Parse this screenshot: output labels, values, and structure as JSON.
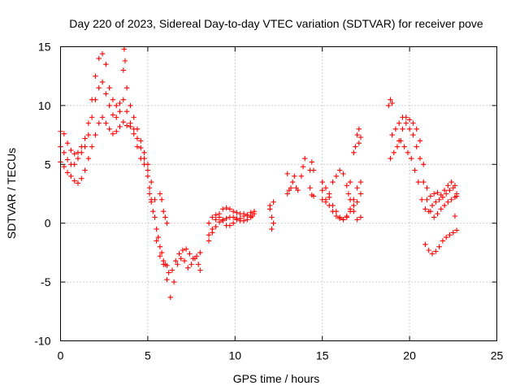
{
  "chart_data": {
    "type": "scatter",
    "title": "Day 220 of 2023, Sidereal Day-to-day VTEC variation (SDTVAR) for receiver pove",
    "xlabel": "GPS time / hours",
    "ylabel": "SDTVAR / TECUs",
    "xlim": [
      0,
      25
    ],
    "ylim": [
      -10,
      15
    ],
    "xticks": [
      "0",
      "5",
      "10",
      "15",
      "20",
      "25"
    ],
    "yticks": [
      "-10",
      "-5",
      "0",
      "5",
      "10",
      "15"
    ],
    "grid": true,
    "marker": "+",
    "series": [
      {
        "name": "SDTVAR",
        "color": "#ff0000",
        "points": [
          [
            0.0,
            7.8
          ],
          [
            0.2,
            7.6
          ],
          [
            0.4,
            6.8
          ],
          [
            0.6,
            6.2
          ],
          [
            0.8,
            5.9
          ],
          [
            1.0,
            6.0
          ],
          [
            1.2,
            6.5
          ],
          [
            1.4,
            7.2
          ],
          [
            1.6,
            8.5
          ],
          [
            1.8,
            10.5
          ],
          [
            2.0,
            12.5
          ],
          [
            2.2,
            14.0
          ],
          [
            2.4,
            14.4
          ],
          [
            2.6,
            13.5
          ],
          [
            2.8,
            11.5
          ],
          [
            3.0,
            10.5
          ],
          [
            3.2,
            10.0
          ],
          [
            3.4,
            10.2
          ],
          [
            3.6,
            13.0
          ],
          [
            3.65,
            14.8
          ],
          [
            3.7,
            13.8
          ],
          [
            3.8,
            11.5
          ],
          [
            4.0,
            10.0
          ],
          [
            4.2,
            9.0
          ],
          [
            4.4,
            8.0
          ],
          [
            4.6,
            7.0
          ],
          [
            4.8,
            6.0
          ],
          [
            5.0,
            4.5
          ],
          [
            5.1,
            3.0
          ],
          [
            5.2,
            1.8
          ],
          [
            0.0,
            6.5
          ],
          [
            0.2,
            6.0
          ],
          [
            0.4,
            5.4
          ],
          [
            0.6,
            5.0
          ],
          [
            0.8,
            5.0
          ],
          [
            1.0,
            5.5
          ],
          [
            1.2,
            6.0
          ],
          [
            1.4,
            6.5
          ],
          [
            1.6,
            7.5
          ],
          [
            1.8,
            9.0
          ],
          [
            2.0,
            10.5
          ],
          [
            2.2,
            11.5
          ],
          [
            2.4,
            12.0
          ],
          [
            2.6,
            11.0
          ],
          [
            2.8,
            10.0
          ],
          [
            3.0,
            9.2
          ],
          [
            3.2,
            9.0
          ],
          [
            3.4,
            9.5
          ],
          [
            3.6,
            10.5
          ],
          [
            3.8,
            9.5
          ],
          [
            4.0,
            8.5
          ],
          [
            4.2,
            8.0
          ],
          [
            4.4,
            7.2
          ],
          [
            4.6,
            6.4
          ],
          [
            4.8,
            5.5
          ],
          [
            5.0,
            5.0
          ],
          [
            5.2,
            3.5
          ],
          [
            5.4,
            2.0
          ],
          [
            0.0,
            5.2
          ],
          [
            0.2,
            4.8
          ],
          [
            0.4,
            4.3
          ],
          [
            0.6,
            4.0
          ],
          [
            0.8,
            3.6
          ],
          [
            1.0,
            3.4
          ],
          [
            1.2,
            3.8
          ],
          [
            1.4,
            4.5
          ],
          [
            1.6,
            5.5
          ],
          [
            1.8,
            6.5
          ],
          [
            2.0,
            7.5
          ],
          [
            2.2,
            8.5
          ],
          [
            2.4,
            9.0
          ],
          [
            2.6,
            8.5
          ],
          [
            2.8,
            8.0
          ],
          [
            3.0,
            7.6
          ],
          [
            3.2,
            7.8
          ],
          [
            3.4,
            8.2
          ],
          [
            3.6,
            8.6
          ],
          [
            3.8,
            8.3
          ],
          [
            4.0,
            8.2
          ],
          [
            4.2,
            7.6
          ],
          [
            4.4,
            6.5
          ],
          [
            4.6,
            5.5
          ],
          [
            4.8,
            5.0
          ],
          [
            5.0,
            4.0
          ],
          [
            5.1,
            2.5
          ],
          [
            5.3,
            1.0
          ],
          [
            5.5,
            -0.5
          ],
          [
            5.7,
            -2.0
          ],
          [
            5.9,
            -3.5
          ],
          [
            6.1,
            -4.8
          ],
          [
            6.3,
            -6.3
          ],
          [
            6.5,
            -5.0
          ],
          [
            6.7,
            -3.5
          ],
          [
            6.9,
            -3.0
          ],
          [
            7.1,
            -3.2
          ],
          [
            7.3,
            -3.8
          ],
          [
            7.5,
            -3.5
          ],
          [
            7.7,
            -3.0
          ],
          [
            7.9,
            -3.5
          ],
          [
            8.0,
            -4.0
          ],
          [
            5.2,
            2.0
          ],
          [
            5.4,
            0.5
          ],
          [
            5.6,
            -1.2
          ],
          [
            5.8,
            -2.5
          ],
          [
            6.0,
            -3.5
          ],
          [
            6.2,
            -4.2
          ],
          [
            6.4,
            -4.0
          ],
          [
            6.6,
            -3.2
          ],
          [
            6.8,
            -2.6
          ],
          [
            7.0,
            -2.3
          ],
          [
            7.2,
            -2.2
          ],
          [
            7.4,
            -2.6
          ],
          [
            7.6,
            -3.0
          ],
          [
            7.8,
            -2.8
          ],
          [
            8.0,
            -2.5
          ],
          [
            5.7,
            2.5
          ],
          [
            5.8,
            2.0
          ],
          [
            5.9,
            1.0
          ],
          [
            6.0,
            0.5
          ],
          [
            6.1,
            0.0
          ],
          [
            5.5,
            -1.5
          ],
          [
            5.7,
            -2.8
          ],
          [
            5.9,
            -3.2
          ],
          [
            6.1,
            -3.6
          ],
          [
            8.5,
            -1.5
          ],
          [
            8.7,
            -0.5
          ],
          [
            8.9,
            0.3
          ],
          [
            9.1,
            0.8
          ],
          [
            9.3,
            1.2
          ],
          [
            9.5,
            1.3
          ],
          [
            9.7,
            1.2
          ],
          [
            9.9,
            1.0
          ],
          [
            10.1,
            0.9
          ],
          [
            10.3,
            0.8
          ],
          [
            10.5,
            0.8
          ],
          [
            10.7,
            0.7
          ],
          [
            10.9,
            0.6
          ],
          [
            11.1,
            0.8
          ],
          [
            8.5,
            -1.0
          ],
          [
            8.7,
            -0.8
          ],
          [
            8.9,
            -0.3
          ],
          [
            9.1,
            0.1
          ],
          [
            9.3,
            0.3
          ],
          [
            9.5,
            0.4
          ],
          [
            9.7,
            0.5
          ],
          [
            9.9,
            0.5
          ],
          [
            10.1,
            0.4
          ],
          [
            10.3,
            0.2
          ],
          [
            10.5,
            0.2
          ],
          [
            10.7,
            0.3
          ],
          [
            10.9,
            0.5
          ],
          [
            11.0,
            0.6
          ],
          [
            8.5,
            0.0
          ],
          [
            8.7,
            0.5
          ],
          [
            8.9,
            0.7
          ],
          [
            9.1,
            0.5
          ],
          [
            9.3,
            0.2
          ],
          [
            9.5,
            -0.2
          ],
          [
            9.7,
            -0.2
          ],
          [
            9.9,
            0.0
          ],
          [
            10.1,
            0.3
          ],
          [
            10.3,
            0.4
          ],
          [
            10.5,
            0.6
          ],
          [
            10.7,
            0.7
          ],
          [
            10.9,
            0.9
          ],
          [
            11.1,
            1.0
          ],
          [
            12.0,
            1.5
          ],
          [
            12.1,
            0.5
          ],
          [
            12.2,
            0.0
          ],
          [
            12.1,
            -0.5
          ],
          [
            12.0,
            1.2
          ],
          [
            12.2,
            1.8
          ],
          [
            13.0,
            2.5
          ],
          [
            13.2,
            3.0
          ],
          [
            13.3,
            3.5
          ],
          [
            13.5,
            3.0
          ],
          [
            13.6,
            2.8
          ],
          [
            13.8,
            4.0
          ],
          [
            13.9,
            4.8
          ],
          [
            14.0,
            5.5
          ],
          [
            14.3,
            3.0
          ],
          [
            14.4,
            2.4
          ],
          [
            14.5,
            2.3
          ],
          [
            14.3,
            4.5
          ],
          [
            14.4,
            5.2
          ],
          [
            14.5,
            4.5
          ],
          [
            13.1,
            2.8
          ],
          [
            13.4,
            4.0
          ],
          [
            13.0,
            4.2
          ],
          [
            15.0,
            3.5
          ],
          [
            15.2,
            3.0
          ],
          [
            15.4,
            2.2
          ],
          [
            15.6,
            1.5
          ],
          [
            15.8,
            1.0
          ],
          [
            16.0,
            0.5
          ],
          [
            16.2,
            0.3
          ],
          [
            16.4,
            0.5
          ],
          [
            16.6,
            1.0
          ],
          [
            16.8,
            1.5
          ],
          [
            17.0,
            1.8
          ],
          [
            17.2,
            2.5
          ],
          [
            15.0,
            2.8
          ],
          [
            15.2,
            2.0
          ],
          [
            15.4,
            1.5
          ],
          [
            15.6,
            1.0
          ],
          [
            15.8,
            0.6
          ],
          [
            16.0,
            0.4
          ],
          [
            16.2,
            0.3
          ],
          [
            16.4,
            0.6
          ],
          [
            16.6,
            1.2
          ],
          [
            16.8,
            2.0
          ],
          [
            17.0,
            3.0
          ],
          [
            17.2,
            3.5
          ],
          [
            15.0,
            2.0
          ],
          [
            15.2,
            1.8
          ],
          [
            15.4,
            2.5
          ],
          [
            15.6,
            3.5
          ],
          [
            15.8,
            4.0
          ],
          [
            16.0,
            4.5
          ],
          [
            16.2,
            4.2
          ],
          [
            16.4,
            3.2
          ],
          [
            16.6,
            2.0
          ],
          [
            16.8,
            1.0
          ],
          [
            17.0,
            0.3
          ],
          [
            17.2,
            0.5
          ],
          [
            16.8,
            6.0
          ],
          [
            17.0,
            7.5
          ],
          [
            17.1,
            8.0
          ],
          [
            17.2,
            7.3
          ],
          [
            16.9,
            6.5
          ],
          [
            17.1,
            6.8
          ],
          [
            16.5,
            2.5
          ],
          [
            16.6,
            3.5
          ],
          [
            18.8,
            10.0
          ],
          [
            18.9,
            10.5
          ],
          [
            19.0,
            10.2
          ],
          [
            18.9,
            5.5
          ],
          [
            19.1,
            6.0
          ],
          [
            19.3,
            6.5
          ],
          [
            19.5,
            7.0
          ],
          [
            19.7,
            6.5
          ],
          [
            19.9,
            6.0
          ],
          [
            20.1,
            5.5
          ],
          [
            20.3,
            4.5
          ],
          [
            20.5,
            3.5
          ],
          [
            20.7,
            2.0
          ],
          [
            20.9,
            1.2
          ],
          [
            21.1,
            1.0
          ],
          [
            21.3,
            1.5
          ],
          [
            21.5,
            1.8
          ],
          [
            21.7,
            2.0
          ],
          [
            21.9,
            2.2
          ],
          [
            22.1,
            2.5
          ],
          [
            22.3,
            2.8
          ],
          [
            22.5,
            3.0
          ],
          [
            22.7,
            2.5
          ],
          [
            19.0,
            7.5
          ],
          [
            19.2,
            8.0
          ],
          [
            19.4,
            8.5
          ],
          [
            19.6,
            9.0
          ],
          [
            19.8,
            8.5
          ],
          [
            20.0,
            8.0
          ],
          [
            20.2,
            7.5
          ],
          [
            20.4,
            6.5
          ],
          [
            20.6,
            5.5
          ],
          [
            20.8,
            3.5
          ],
          [
            21.0,
            2.0
          ],
          [
            21.2,
            1.0
          ],
          [
            21.4,
            0.5
          ],
          [
            21.6,
            0.8
          ],
          [
            21.8,
            1.2
          ],
          [
            22.0,
            1.5
          ],
          [
            22.2,
            1.8
          ],
          [
            22.4,
            2.0
          ],
          [
            22.6,
            2.2
          ],
          [
            22.7,
            2.3
          ],
          [
            19.4,
            7.0
          ],
          [
            19.6,
            8.0
          ],
          [
            19.8,
            9.0
          ],
          [
            20.0,
            8.8
          ],
          [
            20.2,
            8.5
          ],
          [
            20.4,
            8.0
          ],
          [
            20.6,
            7.0
          ],
          [
            20.8,
            5.0
          ],
          [
            21.0,
            3.0
          ],
          [
            21.2,
            2.3
          ],
          [
            21.4,
            2.5
          ],
          [
            21.6,
            2.6
          ],
          [
            21.8,
            2.4
          ],
          [
            22.0,
            2.8
          ],
          [
            22.2,
            3.2
          ],
          [
            22.4,
            3.5
          ],
          [
            22.6,
            3.2
          ],
          [
            20.9,
            -1.8
          ],
          [
            21.1,
            -2.3
          ],
          [
            21.3,
            -2.6
          ],
          [
            21.5,
            -2.4
          ],
          [
            21.7,
            -2.0
          ],
          [
            21.9,
            -1.5
          ],
          [
            22.1,
            -1.2
          ],
          [
            22.3,
            -1.0
          ],
          [
            22.5,
            -0.8
          ],
          [
            22.7,
            -0.6
          ],
          [
            22.6,
            0.6
          ]
        ]
      }
    ]
  }
}
